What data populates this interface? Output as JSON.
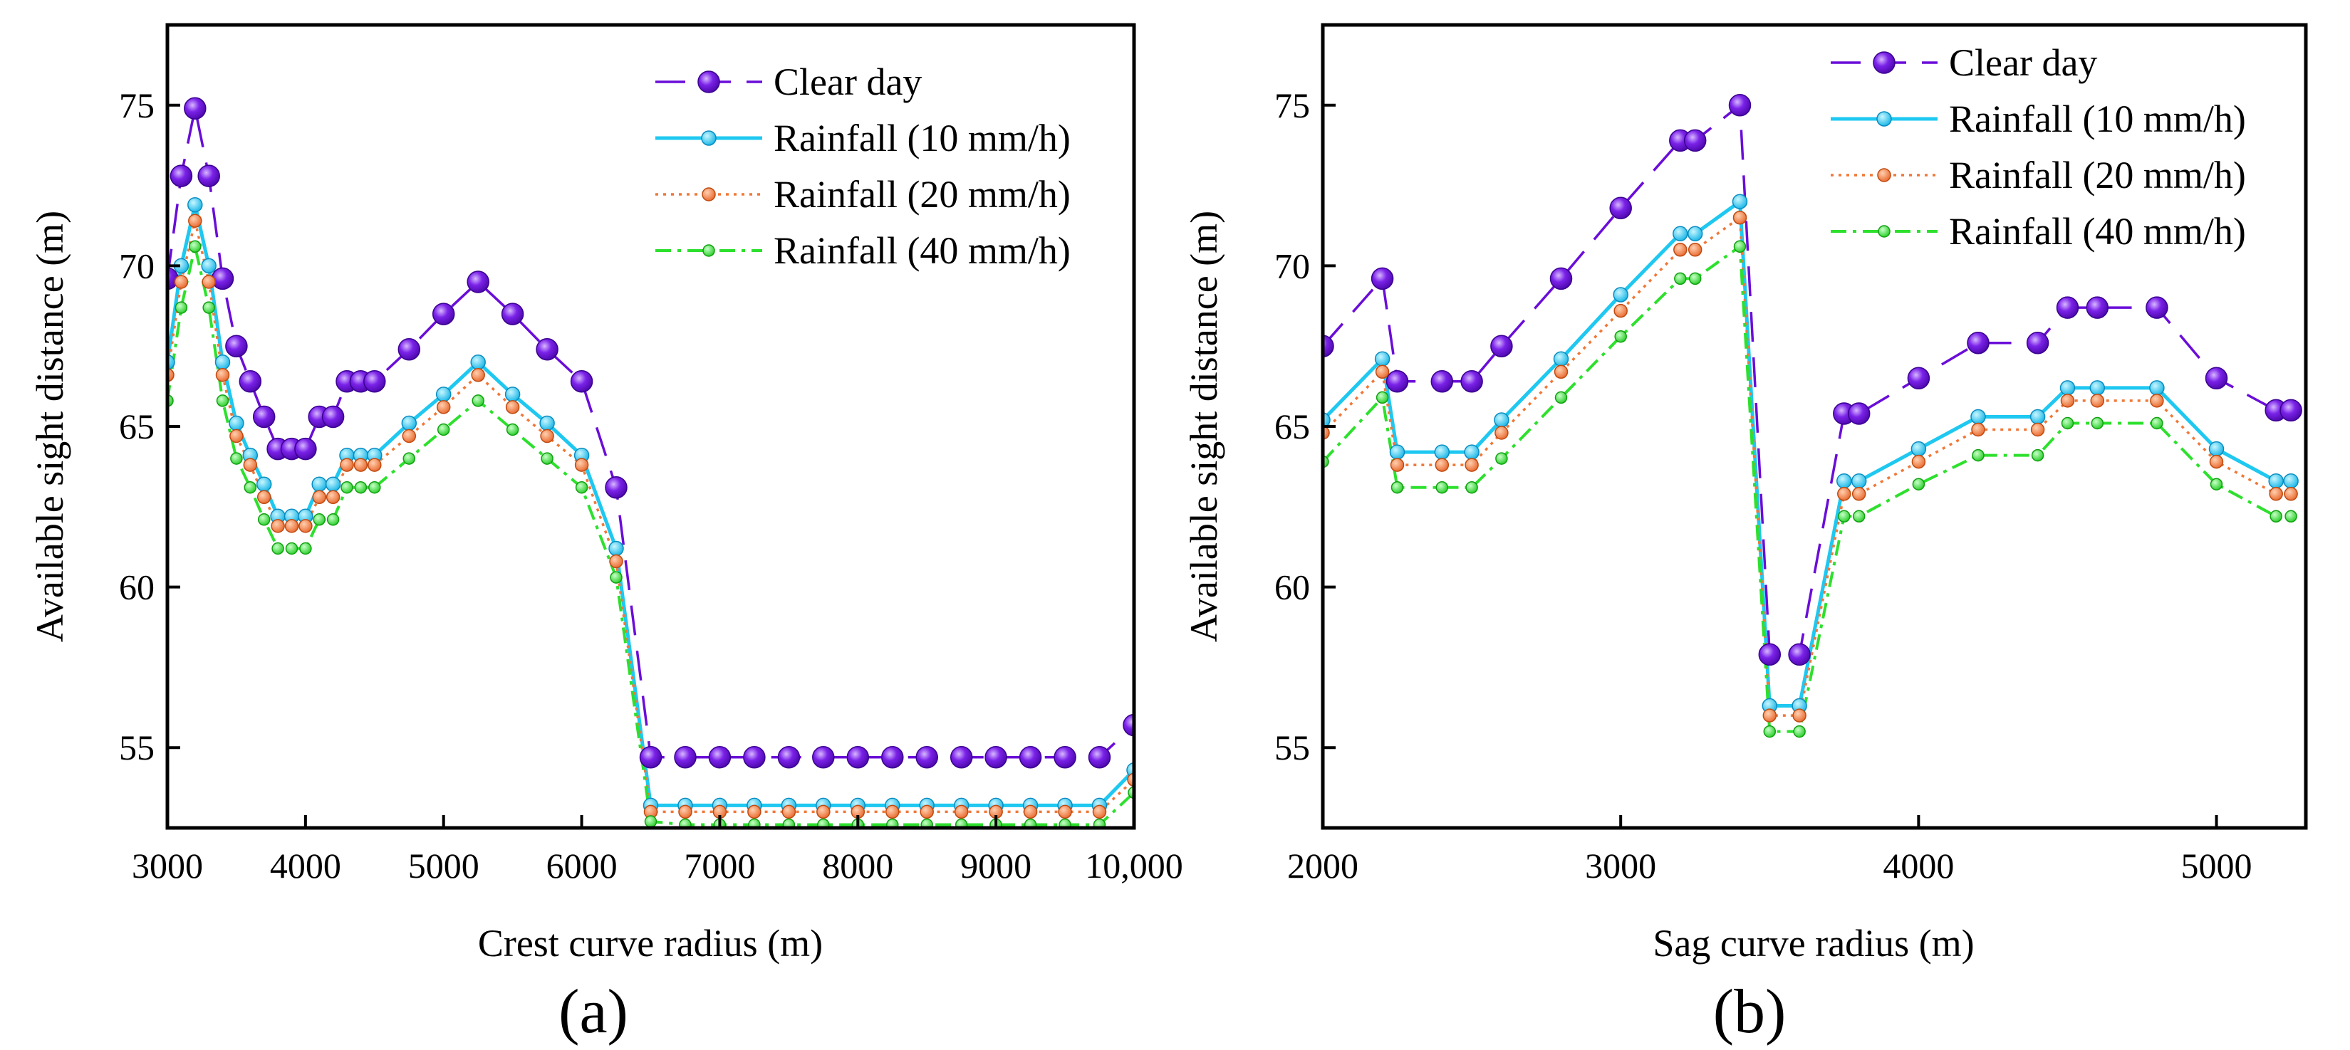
{
  "chart_data": [
    {
      "type": "line",
      "panel_label": "(a)",
      "xlabel": "Crest curve radius (m)",
      "ylabel": "Available sight distance (m)",
      "xlim": [
        3000,
        10000
      ],
      "ylim": [
        52.5,
        77.5
      ],
      "x_ticks": [
        3000,
        4000,
        5000,
        6000,
        7000,
        8000,
        9000,
        10000
      ],
      "x_tick_labels": [
        "3000",
        "4000",
        "5000",
        "6000",
        "7000",
        "8000",
        "9000",
        "10,000"
      ],
      "y_ticks": [
        55,
        60,
        65,
        70,
        75
      ],
      "y_tick_labels": [
        "55",
        "60",
        "65",
        "70",
        "75"
      ],
      "legend_position": "top-right",
      "x": [
        3000,
        3100,
        3200,
        3300,
        3400,
        3500,
        3600,
        3700,
        3800,
        3900,
        4000,
        4100,
        4200,
        4300,
        4400,
        4500,
        4750,
        5000,
        5250,
        5500,
        5750,
        6000,
        6250,
        6500,
        6750,
        7000,
        7250,
        7500,
        7750,
        8000,
        8250,
        8500,
        8750,
        9000,
        9250,
        9500,
        9750,
        10000
      ],
      "series": [
        {
          "name": "Clear day",
          "style": "clear",
          "color": "#6a0dd8",
          "values": [
            69.6,
            72.8,
            74.9,
            72.8,
            69.6,
            67.5,
            66.4,
            65.3,
            64.3,
            64.3,
            64.3,
            65.3,
            65.3,
            66.4,
            66.4,
            66.4,
            67.4,
            68.5,
            69.5,
            68.5,
            67.4,
            66.4,
            63.1,
            54.7,
            54.7,
            54.7,
            54.7,
            54.7,
            54.7,
            54.7,
            54.7,
            54.7,
            54.7,
            54.7,
            54.7,
            54.7,
            54.7,
            55.7
          ]
        },
        {
          "name": "Rainfall (10 mm/h)",
          "style": "r10",
          "color": "#1ec8f0",
          "values": [
            67.0,
            70.0,
            71.9,
            70.0,
            67.0,
            65.1,
            64.1,
            63.2,
            62.2,
            62.2,
            62.2,
            63.2,
            63.2,
            64.1,
            64.1,
            64.1,
            65.1,
            66.0,
            67.0,
            66.0,
            65.1,
            64.1,
            61.2,
            53.2,
            53.2,
            53.2,
            53.2,
            53.2,
            53.2,
            53.2,
            53.2,
            53.2,
            53.2,
            53.2,
            53.2,
            53.2,
            53.2,
            54.3
          ]
        },
        {
          "name": "Rainfall (20 mm/h)",
          "style": "r20",
          "color": "#f07838",
          "values": [
            66.6,
            69.5,
            71.4,
            69.5,
            66.6,
            64.7,
            63.8,
            62.8,
            61.9,
            61.9,
            61.9,
            62.8,
            62.8,
            63.8,
            63.8,
            63.8,
            64.7,
            65.6,
            66.6,
            65.6,
            64.7,
            63.8,
            60.8,
            53.0,
            53.0,
            53.0,
            53.0,
            53.0,
            53.0,
            53.0,
            53.0,
            53.0,
            53.0,
            53.0,
            53.0,
            53.0,
            53.0,
            54.0
          ]
        },
        {
          "name": "Rainfall (40 mm/h)",
          "style": "r40",
          "color": "#2de02d",
          "values": [
            65.8,
            68.7,
            70.6,
            68.7,
            65.8,
            64.0,
            63.1,
            62.1,
            61.2,
            61.2,
            61.2,
            62.1,
            62.1,
            63.1,
            63.1,
            63.1,
            64.0,
            64.9,
            65.8,
            64.9,
            64.0,
            63.1,
            60.3,
            52.7,
            52.6,
            52.6,
            52.6,
            52.6,
            52.6,
            52.6,
            52.6,
            52.6,
            52.6,
            52.6,
            52.6,
            52.6,
            52.6,
            53.6
          ]
        }
      ]
    },
    {
      "type": "line",
      "panel_label": "(b)",
      "xlabel": "Sag curve radius (m)",
      "ylabel": "Available sight distance (m)",
      "xlim": [
        2000,
        5300
      ],
      "ylim": [
        52.5,
        77.5
      ],
      "x_ticks": [
        2000,
        3000,
        4000,
        5000
      ],
      "x_tick_labels": [
        "2000",
        "3000",
        "4000",
        "5000"
      ],
      "y_ticks": [
        55,
        60,
        65,
        70,
        75
      ],
      "y_tick_labels": [
        "55",
        "60",
        "65",
        "70",
        "75"
      ],
      "legend_position": "top-right",
      "x": [
        2000,
        2200,
        2250,
        2400,
        2500,
        2600,
        2800,
        3000,
        3200,
        3250,
        3400,
        3500,
        3600,
        3750,
        3800,
        4000,
        4200,
        4400,
        4500,
        4600,
        4800,
        5000,
        5200,
        5250
      ],
      "series": [
        {
          "name": "Clear day",
          "style": "clear",
          "color": "#6a0dd8",
          "values": [
            67.5,
            69.6,
            66.4,
            66.4,
            66.4,
            67.5,
            69.6,
            71.8,
            73.9,
            73.9,
            75.0,
            57.9,
            57.9,
            65.4,
            65.4,
            66.5,
            67.6,
            67.6,
            68.7,
            68.7,
            68.7,
            66.5,
            65.5,
            65.5
          ]
        },
        {
          "name": "Rainfall (10 mm/h)",
          "style": "r10",
          "color": "#1ec8f0",
          "values": [
            65.2,
            67.1,
            64.2,
            64.2,
            64.2,
            65.2,
            67.1,
            69.1,
            71.0,
            71.0,
            72.0,
            56.3,
            56.3,
            63.3,
            63.3,
            64.3,
            65.3,
            65.3,
            66.2,
            66.2,
            66.2,
            64.3,
            63.3,
            63.3
          ]
        },
        {
          "name": "Rainfall (20 mm/h)",
          "style": "r20",
          "color": "#f07838",
          "values": [
            64.8,
            66.7,
            63.8,
            63.8,
            63.8,
            64.8,
            66.7,
            68.6,
            70.5,
            70.5,
            71.5,
            56.0,
            56.0,
            62.9,
            62.9,
            63.9,
            64.9,
            64.9,
            65.8,
            65.8,
            65.8,
            63.9,
            62.9,
            62.9
          ]
        },
        {
          "name": "Rainfall (40 mm/h)",
          "style": "r40",
          "color": "#2de02d",
          "values": [
            63.9,
            65.9,
            63.1,
            63.1,
            63.1,
            64.0,
            65.9,
            67.8,
            69.6,
            69.6,
            70.6,
            55.5,
            55.5,
            62.2,
            62.2,
            63.2,
            64.1,
            64.1,
            65.1,
            65.1,
            65.1,
            63.2,
            62.2,
            62.2
          ]
        }
      ]
    }
  ]
}
